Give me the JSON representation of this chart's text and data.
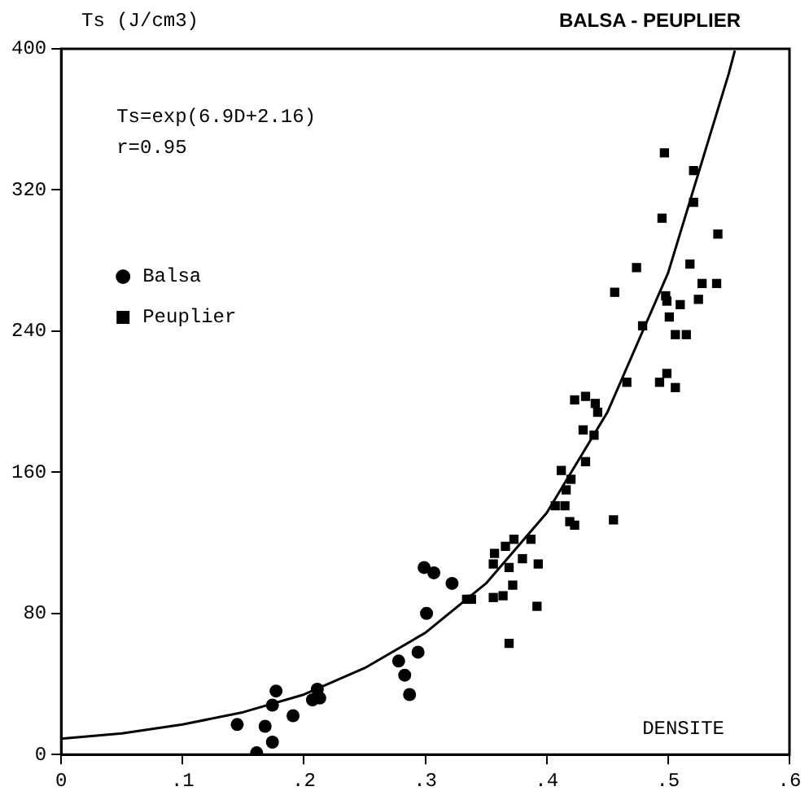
{
  "chart_data": {
    "type": "scatter",
    "title": "BALSA - PEUPLIER",
    "ylabel": "Ts (J/cm3)",
    "xlabel": "DENSITE",
    "annotations": [
      "Ts=exp(6.9D+2.16)",
      "r=0.95"
    ],
    "xlim": [
      0,
      0.6
    ],
    "ylim": [
      0,
      400
    ],
    "xticks": [
      0,
      {
        "value": 0.1,
        "label": ".1"
      },
      {
        "value": 0.2,
        "label": ".2"
      },
      {
        "value": 0.3,
        "label": ".3"
      },
      {
        "value": 0.4,
        "label": ".4"
      },
      {
        "value": 0.5,
        "label": ".5"
      },
      {
        "value": 0.6,
        "label": ".6"
      }
    ],
    "yticks": [
      0,
      80,
      160,
      240,
      320,
      400
    ],
    "grid": false,
    "legend": "left",
    "series": [
      {
        "name": "Balsa",
        "color": "#000000",
        "marker": "circle",
        "x": [
          0.145,
          0.161,
          0.168,
          0.174,
          0.174,
          0.177,
          0.191,
          0.207,
          0.211,
          0.213,
          0.278,
          0.283,
          0.287,
          0.294,
          0.301,
          0.299,
          0.307,
          0.322
        ],
        "values": [
          17,
          1,
          16,
          7,
          28,
          36,
          22,
          31,
          37,
          32,
          53,
          45,
          34,
          58,
          80,
          106,
          103,
          97
        ]
      },
      {
        "name": "Peuplier",
        "color": "#000000",
        "marker": "square",
        "x": [
          0.334,
          0.466,
          0.493,
          0.499,
          0.506,
          0.423,
          0.432,
          0.44,
          0.442,
          0.43,
          0.439,
          0.432,
          0.412,
          0.42,
          0.416,
          0.407,
          0.415,
          0.419,
          0.423,
          0.455,
          0.373,
          0.366,
          0.387,
          0.357,
          0.356,
          0.38,
          0.393,
          0.369,
          0.372,
          0.356,
          0.364,
          0.338,
          0.392,
          0.369,
          0.497,
          0.521,
          0.521,
          0.495,
          0.541,
          0.474,
          0.518,
          0.528,
          0.54,
          0.499,
          0.498,
          0.501,
          0.51,
          0.525,
          0.479,
          0.506,
          0.515,
          0.456
        ],
        "values": [
          88,
          211,
          211,
          216,
          208,
          201,
          203,
          199,
          194,
          184,
          181,
          166,
          161,
          156,
          150,
          141,
          141,
          132,
          130,
          133,
          122,
          118,
          122,
          114,
          108,
          111,
          108,
          106,
          96,
          89,
          90,
          88,
          84,
          63,
          341,
          331,
          313,
          304,
          295,
          276,
          278,
          267,
          267,
          257,
          260,
          248,
          255,
          258,
          243,
          238,
          238,
          262
        ]
      },
      {
        "type": "line",
        "color": "#000000",
        "marker": "none",
        "line_style": "solid",
        "x": [
          0,
          0.05,
          0.1,
          0.15,
          0.2,
          0.25,
          0.3,
          0.35,
          0.4,
          0.45,
          0.5,
          0.55,
          0.555
        ],
        "values": [
          9,
          12,
          17,
          24,
          34,
          49,
          69,
          97,
          137,
          194,
          273,
          386,
          399
        ]
      }
    ]
  }
}
